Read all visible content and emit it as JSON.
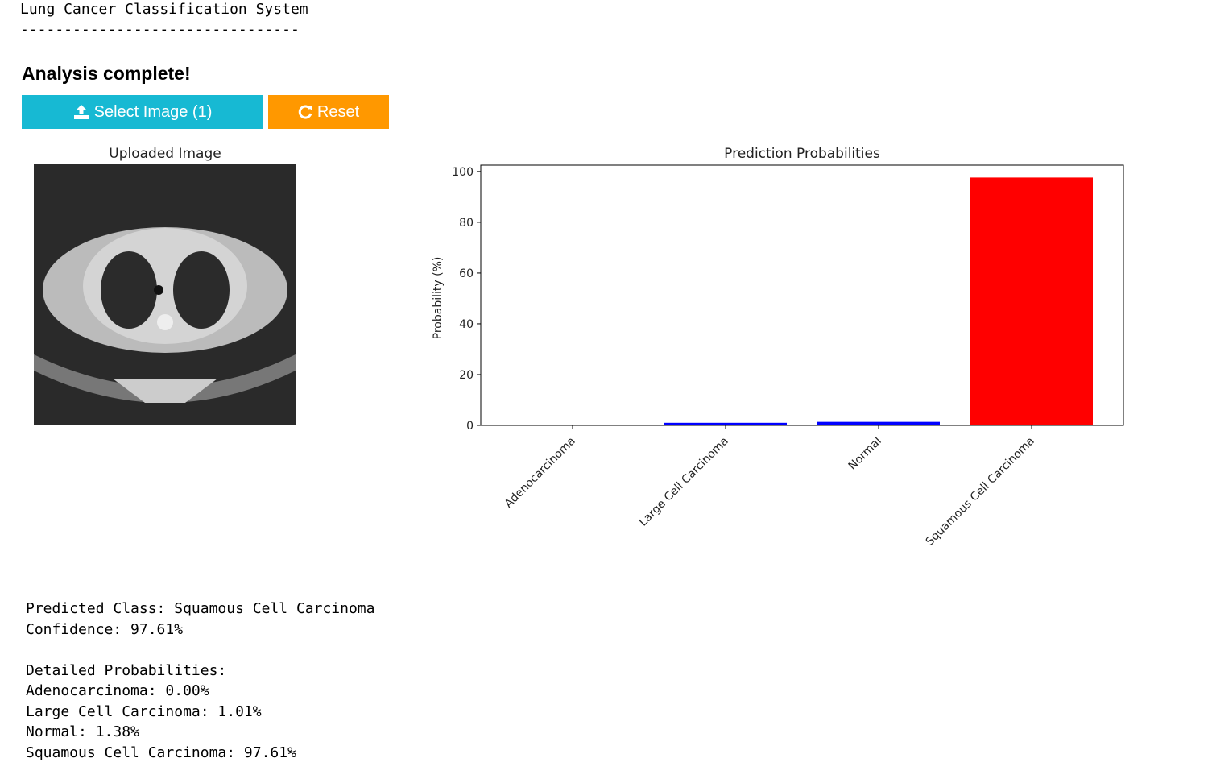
{
  "header": {
    "title": "Lung Cancer Classification System",
    "rule": "--------------------------------"
  },
  "status": "Analysis complete!",
  "buttons": [
    "Select Image (1)",
    "Reset"
  ],
  "image_title": "Uploaded Image",
  "chart_data": {
    "type": "bar",
    "title": "Prediction Probabilities",
    "y_label": "Probability (%)",
    "categories": [
      "Adenocarcinoma",
      "Large Cell Carcinoma",
      "Normal",
      "Squamous Cell Carcinoma"
    ],
    "values": [
      0.0,
      1.01,
      1.38,
      97.61
    ],
    "colors": [
      "#0000ff",
      "#0000ff",
      "#0000ff",
      "#ff0000"
    ],
    "ylim": [
      0,
      102.5
    ],
    "yticks": [
      0,
      20,
      40,
      60,
      80,
      100
    ],
    "grid": false
  },
  "output": {
    "summary": [
      "Predicted Class: Squamous Cell Carcinoma",
      "Confidence: 97.61%"
    ],
    "details_title": "Detailed Probabilities:",
    "details": [
      "Adenocarcinoma: 0.00%",
      "Large Cell Carcinoma: 1.01%",
      "Normal: 1.38%",
      "Squamous Cell Carcinoma: 97.61%"
    ]
  }
}
